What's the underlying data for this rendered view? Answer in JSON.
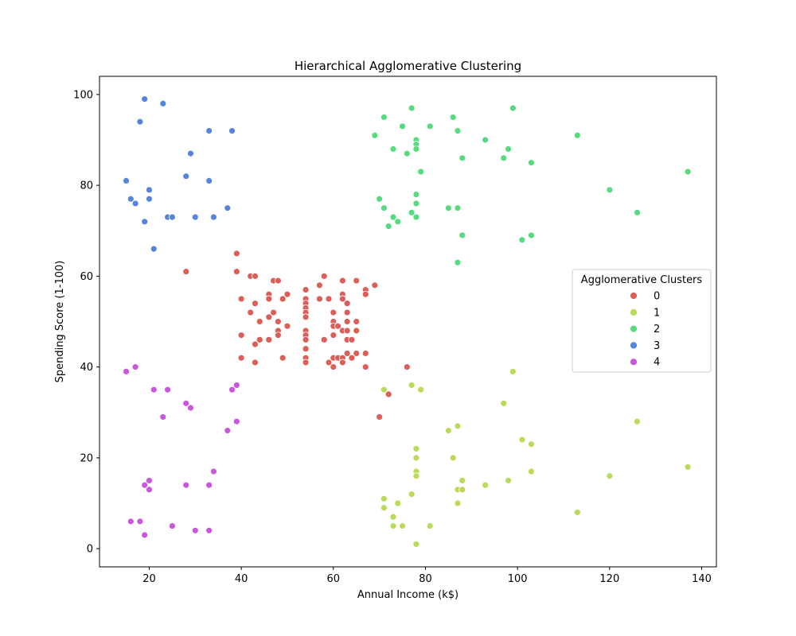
{
  "chart_data": {
    "type": "scatter",
    "title": "Hierarchical Agglomerative Clustering",
    "xlabel": "Annual Income (k$)",
    "ylabel": "Spending Score (1-100)",
    "xlim": [
      9.2,
      143.2
    ],
    "ylim": [
      -4,
      104
    ],
    "xticks": [
      20,
      40,
      60,
      80,
      100,
      120,
      140
    ],
    "yticks": [
      0,
      20,
      40,
      60,
      80,
      100
    ],
    "grid": false,
    "legend": {
      "title": "Agglomerative Clusters",
      "placement": "center-right"
    },
    "series": [
      {
        "name": "0",
        "color": "#db5f57",
        "points": [
          [
            28,
            61
          ],
          [
            39,
            65
          ],
          [
            39,
            61
          ],
          [
            40,
            55
          ],
          [
            40,
            47
          ],
          [
            40,
            42
          ],
          [
            42,
            60
          ],
          [
            42,
            52
          ],
          [
            43,
            60
          ],
          [
            43,
            54
          ],
          [
            43,
            45
          ],
          [
            43,
            41
          ],
          [
            44,
            50
          ],
          [
            44,
            46
          ],
          [
            46,
            56
          ],
          [
            46,
            55
          ],
          [
            46,
            51
          ],
          [
            46,
            46
          ],
          [
            47,
            59
          ],
          [
            47,
            52
          ],
          [
            48,
            59
          ],
          [
            48,
            50
          ],
          [
            48,
            48
          ],
          [
            48,
            47
          ],
          [
            49,
            55
          ],
          [
            49,
            42
          ],
          [
            50,
            56
          ],
          [
            50,
            49
          ],
          [
            54,
            57
          ],
          [
            54,
            55
          ],
          [
            54,
            54
          ],
          [
            54,
            53
          ],
          [
            54,
            52
          ],
          [
            54,
            51
          ],
          [
            54,
            48
          ],
          [
            54,
            47
          ],
          [
            54,
            46
          ],
          [
            54,
            44
          ],
          [
            54,
            42
          ],
          [
            54,
            41
          ],
          [
            57,
            58
          ],
          [
            57,
            55
          ],
          [
            58,
            60
          ],
          [
            58,
            46
          ],
          [
            59,
            55
          ],
          [
            59,
            41
          ],
          [
            60,
            52
          ],
          [
            60,
            50
          ],
          [
            60,
            49
          ],
          [
            60,
            47
          ],
          [
            60,
            42
          ],
          [
            60,
            40
          ],
          [
            61,
            49
          ],
          [
            61,
            42
          ],
          [
            62,
            59
          ],
          [
            62,
            56
          ],
          [
            62,
            55
          ],
          [
            62,
            48
          ],
          [
            62,
            42
          ],
          [
            62,
            41
          ],
          [
            63,
            54
          ],
          [
            63,
            52
          ],
          [
            63,
            50
          ],
          [
            63,
            48
          ],
          [
            63,
            46
          ],
          [
            63,
            43
          ],
          [
            64,
            46
          ],
          [
            64,
            42
          ],
          [
            65,
            59
          ],
          [
            65,
            50
          ],
          [
            65,
            48
          ],
          [
            65,
            43
          ],
          [
            67,
            57
          ],
          [
            67,
            56
          ],
          [
            67,
            43
          ],
          [
            67,
            40
          ],
          [
            69,
            58
          ],
          [
            70,
            29
          ],
          [
            72,
            34
          ],
          [
            76,
            40
          ]
        ]
      },
      {
        "name": "1",
        "color": "#b9db57",
        "points": [
          [
            71,
            35
          ],
          [
            71,
            11
          ],
          [
            71,
            9
          ],
          [
            73,
            7
          ],
          [
            73,
            5
          ],
          [
            74,
            10
          ],
          [
            75,
            5
          ],
          [
            77,
            36
          ],
          [
            77,
            12
          ],
          [
            78,
            22
          ],
          [
            78,
            20
          ],
          [
            78,
            17
          ],
          [
            78,
            16
          ],
          [
            78,
            1
          ],
          [
            79,
            35
          ],
          [
            81,
            5
          ],
          [
            85,
            26
          ],
          [
            86,
            20
          ],
          [
            87,
            27
          ],
          [
            87,
            13
          ],
          [
            87,
            10
          ],
          [
            88,
            15
          ],
          [
            88,
            13
          ],
          [
            93,
            14
          ],
          [
            97,
            32
          ],
          [
            98,
            15
          ],
          [
            99,
            39
          ],
          [
            101,
            24
          ],
          [
            103,
            23
          ],
          [
            103,
            17
          ],
          [
            113,
            8
          ],
          [
            120,
            16
          ],
          [
            126,
            28
          ],
          [
            137,
            18
          ]
        ]
      },
      {
        "name": "2",
        "color": "#57db80",
        "points": [
          [
            69,
            91
          ],
          [
            70,
            77
          ],
          [
            71,
            95
          ],
          [
            71,
            75
          ],
          [
            72,
            71
          ],
          [
            73,
            88
          ],
          [
            73,
            73
          ],
          [
            74,
            72
          ],
          [
            75,
            93
          ],
          [
            76,
            87
          ],
          [
            77,
            97
          ],
          [
            77,
            74
          ],
          [
            78,
            90
          ],
          [
            78,
            89
          ],
          [
            78,
            88
          ],
          [
            78,
            78
          ],
          [
            78,
            76
          ],
          [
            78,
            73
          ],
          [
            79,
            83
          ],
          [
            81,
            93
          ],
          [
            85,
            75
          ],
          [
            86,
            95
          ],
          [
            87,
            92
          ],
          [
            87,
            75
          ],
          [
            87,
            63
          ],
          [
            88,
            86
          ],
          [
            88,
            69
          ],
          [
            93,
            90
          ],
          [
            97,
            86
          ],
          [
            98,
            88
          ],
          [
            99,
            97
          ],
          [
            101,
            68
          ],
          [
            103,
            85
          ],
          [
            103,
            69
          ],
          [
            113,
            91
          ],
          [
            120,
            79
          ],
          [
            126,
            74
          ],
          [
            137,
            83
          ]
        ]
      },
      {
        "name": "3",
        "color": "#5784db",
        "points": [
          [
            15,
            81
          ],
          [
            16,
            77
          ],
          [
            17,
            76
          ],
          [
            18,
            94
          ],
          [
            19,
            99
          ],
          [
            19,
            72
          ],
          [
            20,
            79
          ],
          [
            20,
            77
          ],
          [
            21,
            66
          ],
          [
            23,
            98
          ],
          [
            24,
            73
          ],
          [
            25,
            73
          ],
          [
            28,
            82
          ],
          [
            29,
            87
          ],
          [
            30,
            73
          ],
          [
            33,
            92
          ],
          [
            33,
            81
          ],
          [
            34,
            73
          ],
          [
            37,
            75
          ],
          [
            38,
            92
          ]
        ]
      },
      {
        "name": "4",
        "color": "#c957db",
        "points": [
          [
            15,
            39
          ],
          [
            16,
            6
          ],
          [
            17,
            40
          ],
          [
            18,
            6
          ],
          [
            19,
            14
          ],
          [
            19,
            3
          ],
          [
            20,
            15
          ],
          [
            20,
            13
          ],
          [
            21,
            35
          ],
          [
            23,
            29
          ],
          [
            24,
            35
          ],
          [
            25,
            5
          ],
          [
            28,
            32
          ],
          [
            28,
            14
          ],
          [
            29,
            31
          ],
          [
            30,
            4
          ],
          [
            33,
            14
          ],
          [
            33,
            4
          ],
          [
            34,
            17
          ],
          [
            37,
            26
          ],
          [
            38,
            35
          ],
          [
            39,
            36
          ],
          [
            39,
            28
          ]
        ]
      }
    ]
  }
}
